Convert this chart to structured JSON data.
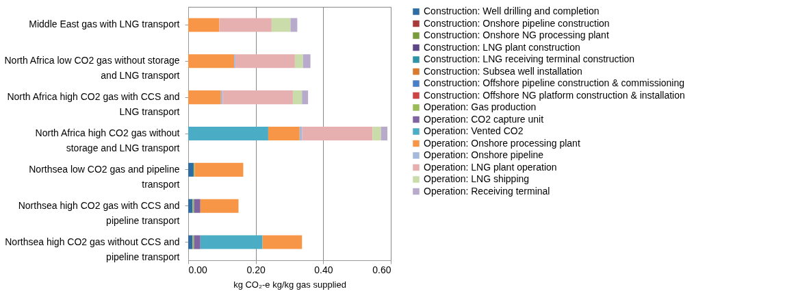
{
  "chart_data": {
    "type": "bar",
    "orientation": "horizontal",
    "stacked": true,
    "xlabel": "kg CO₂-e kg/kg gas supplied",
    "categories": [
      "Middle East gas with LNG transport",
      "North Africa low CO2 gas without storage and LNG transport",
      "North Africa high CO2 gas with CCS and LNG transport",
      "North Africa high CO2 gas without storage and LNG transport",
      "Northsea low CO2 gas and pipeline transport",
      "Northsea high CO2 gas with CCS and pipeline transport",
      "Northsea high CO2 gas without CCS and pipeline transport"
    ],
    "xlim": [
      0,
      0.6
    ],
    "xticks": [
      {
        "value": 0,
        "label": "0.00"
      },
      {
        "value": 0.2,
        "label": "0.20"
      },
      {
        "value": 0.4,
        "label": "0.40"
      },
      {
        "value": 0.6,
        "label": "0.60"
      }
    ],
    "grid": "x",
    "legend": "right",
    "series": [
      {
        "name": "Construction: Well drilling and completion",
        "color": "#2e6ca4",
        "values": [
          null,
          null,
          null,
          null,
          0.016,
          0.013,
          0.013
        ]
      },
      {
        "name": "Construction: Onshore pipeline construction",
        "color": "#a83a3a",
        "values": [
          null,
          null,
          null,
          null,
          null,
          null,
          null
        ]
      },
      {
        "name": "Construction: Onshore NG processing plant",
        "color": "#7a9c3a",
        "values": [
          null,
          null,
          null,
          null,
          null,
          null,
          null
        ]
      },
      {
        "name": "Construction: LNG plant construction",
        "color": "#5e4585",
        "values": [
          null,
          null,
          null,
          null,
          null,
          null,
          null
        ]
      },
      {
        "name": "Construction: LNG receiving terminal construction",
        "color": "#2f93a6",
        "values": [
          null,
          null,
          null,
          null,
          null,
          null,
          null
        ]
      },
      {
        "name": "Construction: Subsea well installation",
        "color": "#d97a2e",
        "values": [
          null,
          null,
          null,
          null,
          null,
          null,
          null
        ]
      },
      {
        "name": "Construction: Offshore pipeline construction & commissioning",
        "color": "#4a7fc8",
        "values": [
          null,
          null,
          null,
          null,
          null,
          null,
          null
        ]
      },
      {
        "name": "Construction: Offshore NG platform construction & installation",
        "color": "#cc4444",
        "values": [
          null,
          null,
          null,
          null,
          null,
          null,
          null
        ]
      },
      {
        "name": "Operation: Gas production",
        "color": "#9bbb59",
        "values": [
          null,
          null,
          null,
          null,
          0.003,
          0.004,
          0.004
        ]
      },
      {
        "name": "Operation: CO2 capture unit",
        "color": "#8064a2",
        "values": [
          null,
          null,
          null,
          null,
          null,
          0.019,
          0.019
        ]
      },
      {
        "name": "Operation: Vented CO2",
        "color": "#4bacc6",
        "values": [
          null,
          null,
          null,
          0.237,
          null,
          null,
          0.184
        ]
      },
      {
        "name": "Operation: Onshore processing plant",
        "color": "#f79646",
        "values": [
          0.092,
          0.136,
          0.097,
          0.093,
          0.144,
          0.113,
          0.117
        ]
      },
      {
        "name": "Operation: Onshore pipeline",
        "color": "#a6b8de",
        "values": [
          null,
          0.004,
          0.005,
          0.007,
          null,
          null,
          null
        ]
      },
      {
        "name": "Operation: LNG plant operation",
        "color": "#e6b0b0",
        "values": [
          0.155,
          0.176,
          0.208,
          0.209,
          null,
          null,
          null
        ]
      },
      {
        "name": "Operation: LNG shipping",
        "color": "#c9dcaa",
        "values": [
          0.056,
          0.024,
          0.027,
          0.025,
          null,
          null,
          null
        ]
      },
      {
        "name": "Operation: Receiving terminal",
        "color": "#b7aacb",
        "values": [
          0.02,
          0.022,
          0.018,
          0.019,
          null,
          null,
          null
        ]
      }
    ]
  }
}
